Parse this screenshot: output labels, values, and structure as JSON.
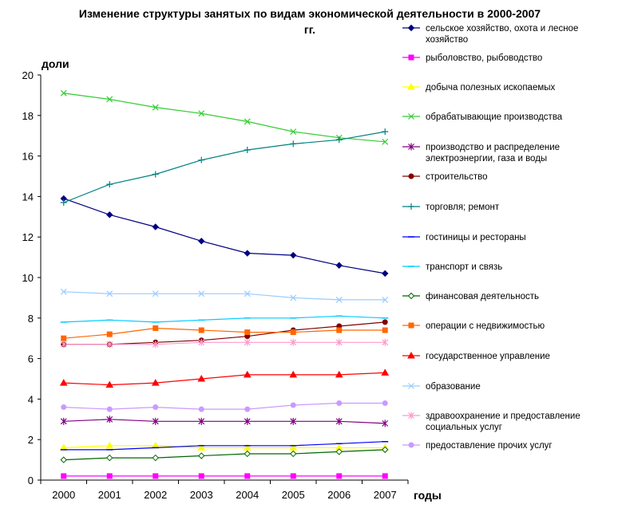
{
  "chart_data": {
    "type": "line",
    "title_line1": "Изменение структуры занятых по видам экономической деятельности в 2000-2007",
    "title_line2": "гг.",
    "ylabel": "доли",
    "xlabel": "годы",
    "x": [
      "2000",
      "2001",
      "2002",
      "2003",
      "2004",
      "2005",
      "2006",
      "2007"
    ],
    "ylim": [
      0,
      20
    ],
    "yticks": [
      0,
      2,
      4,
      6,
      8,
      10,
      12,
      14,
      16,
      18,
      20
    ],
    "grid": false,
    "legend_position": "right",
    "series": [
      {
        "name": [
          "сельское хозяйство, охота и лесное",
          "хозяйство"
        ],
        "color": "#000080",
        "marker": "diamond",
        "values": [
          13.9,
          13.1,
          12.5,
          11.8,
          11.2,
          11.1,
          10.6,
          10.2
        ]
      },
      {
        "name": [
          "рыболовство, рыбоводство"
        ],
        "color": "#ff00ff",
        "marker": "square",
        "values": [
          0.2,
          0.2,
          0.2,
          0.2,
          0.2,
          0.2,
          0.2,
          0.2
        ]
      },
      {
        "name": [
          "добыча полезных ископаемых"
        ],
        "color": "#ffff00",
        "marker": "triangle",
        "values": [
          1.6,
          1.7,
          1.7,
          1.6,
          1.6,
          1.6,
          1.6,
          1.6
        ]
      },
      {
        "name": [
          "обрабатывающие производства"
        ],
        "color": "#33cc33",
        "marker": "x",
        "values": [
          19.1,
          18.8,
          18.4,
          18.1,
          17.7,
          17.2,
          16.9,
          16.7
        ]
      },
      {
        "name": [
          "производство и распределение",
          "электроэнергии, газа и воды"
        ],
        "color": "#800080",
        "marker": "star",
        "values": [
          2.9,
          3.0,
          2.9,
          2.9,
          2.9,
          2.9,
          2.9,
          2.8
        ]
      },
      {
        "name": [
          "строительство"
        ],
        "color": "#800000",
        "marker": "circle",
        "values": [
          6.7,
          6.7,
          6.8,
          6.9,
          7.1,
          7.4,
          7.6,
          7.8
        ]
      },
      {
        "name": [
          "торговля; ремонт"
        ],
        "color": "#008080",
        "marker": "plus",
        "values": [
          13.7,
          14.6,
          15.1,
          15.8,
          16.3,
          16.6,
          16.8,
          17.2
        ]
      },
      {
        "name": [
          "гостиницы и рестораны"
        ],
        "color": "#0000ff",
        "marker": "dash",
        "values": [
          1.5,
          1.5,
          1.6,
          1.7,
          1.7,
          1.7,
          1.8,
          1.9
        ]
      },
      {
        "name": [
          "транспорт и связь"
        ],
        "color": "#00ccff",
        "marker": "dash",
        "values": [
          7.8,
          7.9,
          7.8,
          7.9,
          8.0,
          8.0,
          8.1,
          8.0
        ]
      },
      {
        "name": [
          "финансовая деятельность"
        ],
        "color": "#006600",
        "marker": "diamond-open",
        "values": [
          1.0,
          1.1,
          1.1,
          1.2,
          1.3,
          1.3,
          1.4,
          1.5
        ]
      },
      {
        "name": [
          "операции с недвижимостью"
        ],
        "color": "#ff6600",
        "marker": "square",
        "values": [
          7.0,
          7.2,
          7.5,
          7.4,
          7.3,
          7.3,
          7.4,
          7.4
        ]
      },
      {
        "name": [
          "государственное управление"
        ],
        "color": "#ff0000",
        "marker": "triangle",
        "values": [
          4.8,
          4.7,
          4.8,
          5.0,
          5.2,
          5.2,
          5.2,
          5.3
        ]
      },
      {
        "name": [
          "образование"
        ],
        "color": "#99ccff",
        "marker": "x",
        "values": [
          9.3,
          9.2,
          9.2,
          9.2,
          9.2,
          9.0,
          8.9,
          8.9
        ]
      },
      {
        "name": [
          "здравоохранение и предоставление",
          "социальных услуг"
        ],
        "color": "#ff99cc",
        "marker": "star",
        "values": [
          6.7,
          6.7,
          6.7,
          6.8,
          6.8,
          6.8,
          6.8,
          6.8
        ]
      },
      {
        "name": [
          "предоставление прочих услуг"
        ],
        "color": "#cc99ff",
        "marker": "circle",
        "values": [
          3.6,
          3.5,
          3.6,
          3.5,
          3.5,
          3.7,
          3.8,
          3.8
        ]
      }
    ]
  }
}
